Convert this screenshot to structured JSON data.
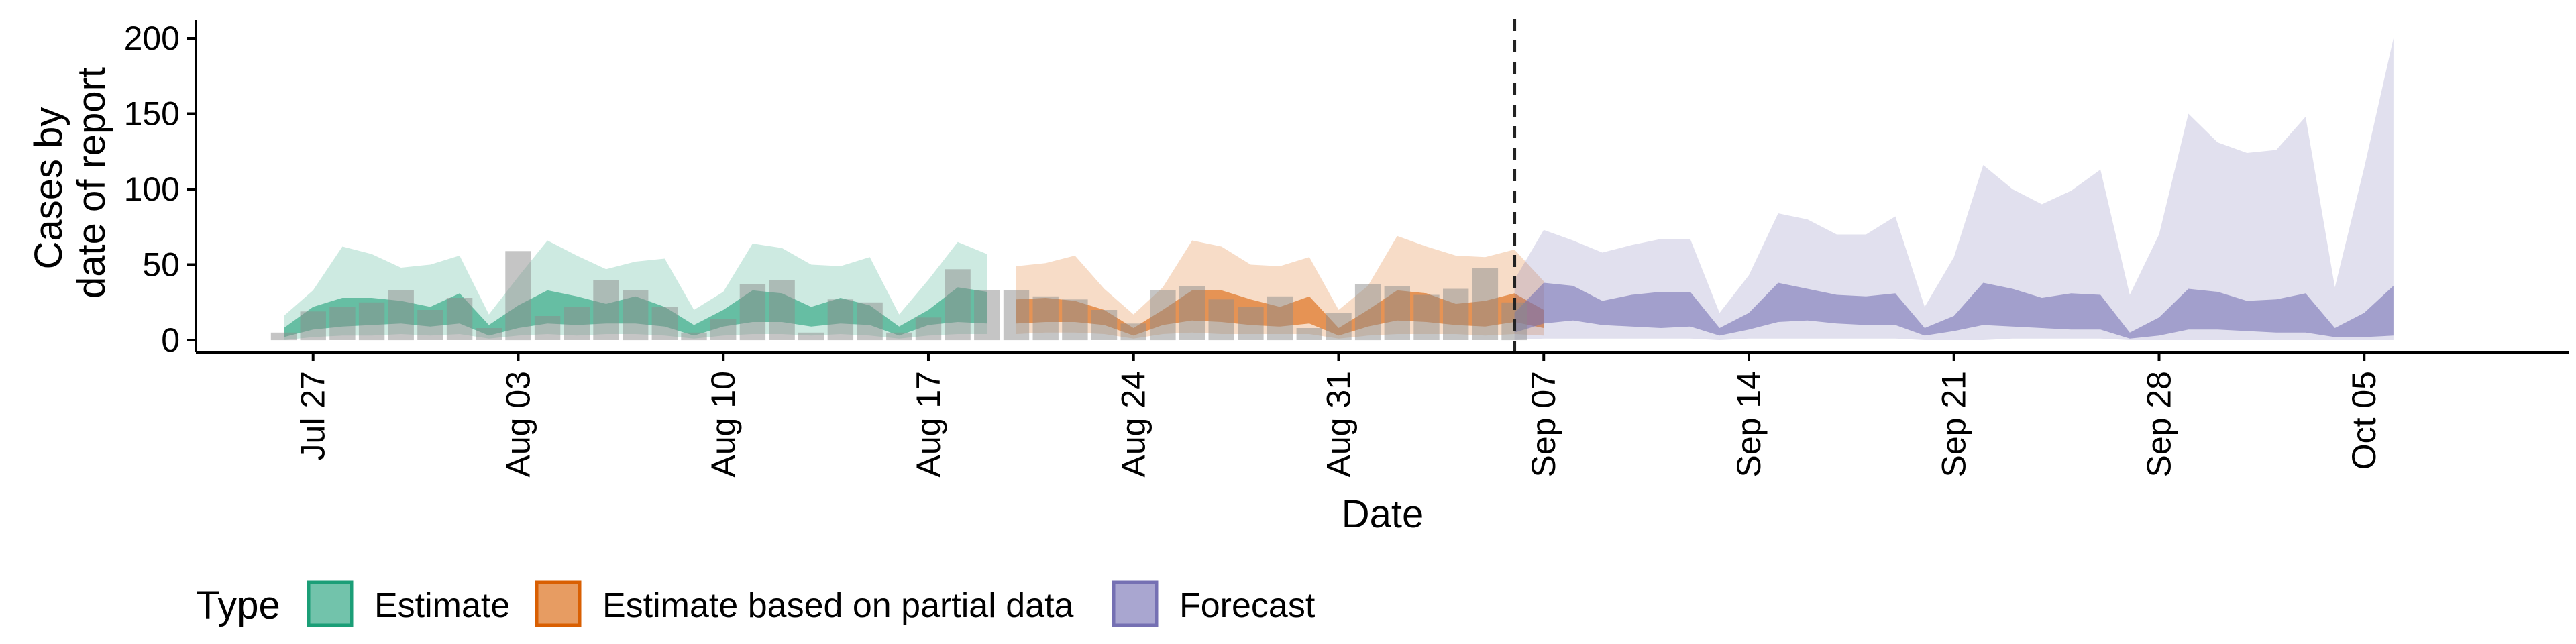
{
  "chart_data": {
    "type": "area",
    "xlabel": "Date",
    "ylabel_lines": [
      "Cases by",
      "date of report"
    ],
    "ylim": [
      -8,
      212
    ],
    "yticks": [
      0,
      50,
      100,
      150,
      200
    ],
    "x_start": "2020-07-23",
    "x_end": "2020-10-12",
    "xticks": [
      {
        "date": "2020-07-27",
        "label": "Jul 27"
      },
      {
        "date": "2020-08-03",
        "label": "Aug 03"
      },
      {
        "date": "2020-08-10",
        "label": "Aug 10"
      },
      {
        "date": "2020-08-17",
        "label": "Aug 17"
      },
      {
        "date": "2020-08-24",
        "label": "Aug 24"
      },
      {
        "date": "2020-08-31",
        "label": "Aug 31"
      },
      {
        "date": "2020-09-07",
        "label": "Sep 07"
      },
      {
        "date": "2020-09-14",
        "label": "Sep 14"
      },
      {
        "date": "2020-09-21",
        "label": "Sep 21"
      },
      {
        "date": "2020-09-28",
        "label": "Sep 28"
      },
      {
        "date": "2020-10-05",
        "label": "Oct 05"
      }
    ],
    "forecast_date": "2020-09-06",
    "legend": {
      "title": "Type",
      "position": "bottom",
      "items": [
        {
          "label": "Estimate",
          "fill": "#1b9e77"
        },
        {
          "label": "Estimate based on partial data",
          "fill": "#d95f02"
        },
        {
          "label": "Forecast",
          "fill": "#7570b3"
        }
      ]
    },
    "observed_cases": {
      "start": "2020-07-26",
      "values": [
        5,
        19,
        22,
        25,
        33,
        20,
        28,
        8,
        59,
        16,
        22,
        40,
        33,
        22,
        5,
        14,
        37,
        40,
        5,
        27,
        25,
        5,
        15,
        47,
        33,
        33,
        29,
        27,
        20,
        11,
        33,
        36,
        27,
        22,
        29,
        8,
        18,
        37,
        36,
        30,
        34,
        48,
        25
      ]
    },
    "series": [
      {
        "name": "Estimate",
        "color": "#1b9e77",
        "start": "2020-07-26",
        "lower90": [
          0,
          2,
          3,
          3,
          4,
          3,
          4,
          1,
          3,
          4,
          3,
          4,
          4,
          3,
          1,
          3,
          4,
          4,
          3,
          4,
          3,
          1,
          3,
          4,
          4
        ],
        "lower50": [
          2,
          7,
          9,
          10,
          11,
          9,
          11,
          3,
          8,
          11,
          10,
          11,
          11,
          9,
          3,
          9,
          12,
          12,
          9,
          11,
          10,
          3,
          10,
          12,
          11
        ],
        "upper50": [
          8,
          22,
          28,
          28,
          26,
          22,
          31,
          10,
          23,
          33,
          29,
          24,
          29,
          22,
          10,
          20,
          33,
          31,
          22,
          28,
          23,
          9,
          20,
          35,
          32
        ],
        "upper90": [
          16,
          33,
          62,
          57,
          48,
          50,
          56,
          17,
          42,
          66,
          56,
          47,
          52,
          54,
          20,
          32,
          64,
          61,
          50,
          49,
          55,
          17,
          40,
          65,
          57
        ]
      },
      {
        "name": "Estimate based on partial data",
        "color": "#d95f02",
        "start": "2020-08-20",
        "lower90": [
          4,
          5,
          5,
          4,
          1,
          4,
          5,
          4,
          4,
          4,
          4,
          1,
          3,
          4,
          4,
          4,
          3,
          4,
          3
        ],
        "lower50": [
          11,
          12,
          12,
          10,
          3,
          10,
          13,
          12,
          10,
          9,
          11,
          3,
          9,
          13,
          12,
          10,
          9,
          12,
          8
        ],
        "upper50": [
          27,
          28,
          26,
          20,
          8,
          20,
          33,
          33,
          27,
          22,
          29,
          8,
          20,
          33,
          31,
          24,
          26,
          31,
          20
        ],
        "upper90": [
          49,
          51,
          56,
          34,
          17,
          35,
          66,
          62,
          50,
          49,
          55,
          20,
          36,
          69,
          62,
          56,
          55,
          60,
          39
        ]
      },
      {
        "name": "Forecast",
        "color": "#7570b3",
        "start": "2020-09-06",
        "lower90": [
          0,
          1,
          1,
          1,
          1,
          1,
          1,
          0,
          1,
          1,
          1,
          1,
          1,
          1,
          0,
          0,
          0,
          1,
          1,
          1,
          1,
          0,
          0,
          0,
          0,
          0,
          0,
          0,
          0,
          0,
          0
        ],
        "lower50": [
          5,
          11,
          13,
          10,
          9,
          8,
          9,
          3,
          7,
          12,
          13,
          11,
          10,
          10,
          3,
          6,
          10,
          9,
          8,
          7,
          7,
          1,
          3,
          7,
          7,
          6,
          5,
          5,
          2,
          2,
          3
        ],
        "upper50": [
          18,
          38,
          36,
          26,
          30,
          32,
          32,
          8,
          18,
          38,
          34,
          30,
          29,
          31,
          8,
          16,
          38,
          34,
          28,
          31,
          30,
          5,
          15,
          34,
          32,
          26,
          27,
          31,
          8,
          18,
          36
        ],
        "upper90": [
          40,
          73,
          66,
          58,
          63,
          67,
          67,
          18,
          43,
          84,
          80,
          70,
          70,
          82,
          22,
          55,
          116,
          100,
          90,
          99,
          113,
          30,
          70,
          150,
          131,
          124,
          126,
          148,
          35,
          114,
          200
        ]
      }
    ]
  }
}
